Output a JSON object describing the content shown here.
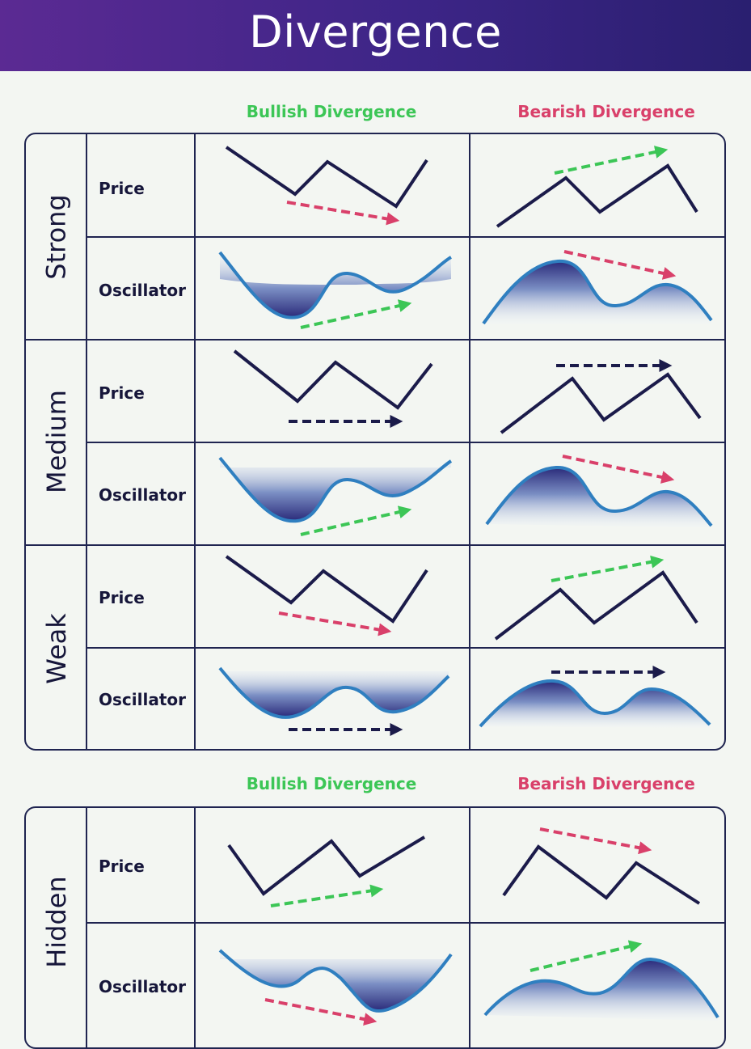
{
  "title": "Divergence",
  "columns": {
    "bullish": "Bullish Divergence",
    "bearish": "Bearish Divergence"
  },
  "groups": [
    {
      "label": "Strong",
      "rows": [
        "Price",
        "Oscillator"
      ]
    },
    {
      "label": "Medium",
      "rows": [
        "Price",
        "Oscillator"
      ]
    },
    {
      "label": "Weak",
      "rows": [
        "Price",
        "Oscillator"
      ]
    },
    {
      "label": "Hidden",
      "rows": [
        "Price",
        "Oscillator"
      ]
    }
  ],
  "colors": {
    "header_start": "#5b2a93",
    "header_end": "#2a1f70",
    "bullish": "#3cc656",
    "bearish": "#d9406a",
    "grid": "#1f2450",
    "line": "#1b1b4a",
    "oscillator": "#2f7fc0",
    "neutral_arrow": "#1b1b4a"
  }
}
